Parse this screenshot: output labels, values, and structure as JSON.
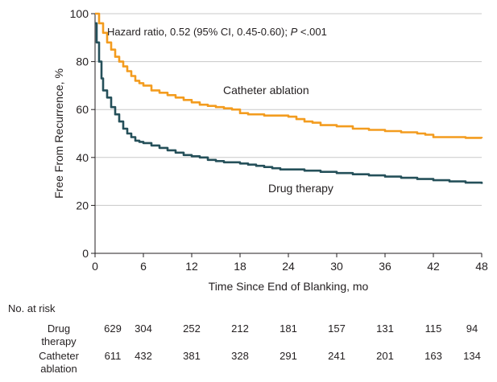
{
  "chart_data": {
    "type": "line",
    "annotation": {
      "prefix": "Hazard ratio, 0.52 (95% CI, 0.45-0.60); ",
      "p_symbol": "P",
      "p_value": " <.001"
    },
    "xlabel": "Time Since End of Blanking, mo",
    "ylabel": "Free From Recurrence, %",
    "xlim": [
      0,
      48
    ],
    "ylim": [
      0,
      100
    ],
    "xticks": [
      0,
      6,
      12,
      18,
      24,
      30,
      36,
      42,
      48
    ],
    "yticks": [
      0,
      20,
      40,
      60,
      80,
      100
    ],
    "grid": "horizontal",
    "series": [
      {
        "name": "Catheter ablation",
        "color": "#f39c1f",
        "x": [
          0,
          0.5,
          1,
          1.5,
          2,
          2.5,
          3,
          3.5,
          4,
          4.5,
          5,
          5.5,
          6,
          7,
          8,
          9,
          10,
          11,
          12,
          13,
          14,
          15,
          16,
          17,
          18,
          19,
          20,
          21,
          22,
          23,
          24,
          25,
          26,
          27,
          28,
          30,
          32,
          34,
          36,
          38,
          40,
          41,
          42,
          44,
          46,
          48
        ],
        "y": [
          100,
          96,
          92,
          88,
          85,
          82,
          80,
          78,
          76,
          74,
          72,
          71,
          70,
          68,
          67,
          66,
          65,
          64,
          63,
          62,
          61.5,
          61,
          60.5,
          60,
          58.5,
          58,
          58,
          57.5,
          57.5,
          57.5,
          57,
          56,
          55,
          54.5,
          53.5,
          53,
          52,
          51.5,
          51,
          50.5,
          50,
          49.5,
          48.5,
          48.5,
          48.2,
          48
        ]
      },
      {
        "name": "Drug therapy",
        "color": "#25505a",
        "x": [
          0,
          0.2,
          0.5,
          0.8,
          1,
          1.5,
          2,
          2.5,
          3,
          3.5,
          4,
          4.5,
          5,
          5.5,
          6,
          7,
          8,
          9,
          10,
          11,
          12,
          13,
          14,
          15,
          16,
          17,
          18,
          19,
          20,
          21,
          22,
          23,
          24,
          26,
          28,
          30,
          32,
          34,
          36,
          38,
          40,
          42,
          44,
          46,
          48
        ],
        "y": [
          96,
          88,
          80,
          73,
          68,
          65,
          61,
          58,
          55,
          52,
          50,
          48.5,
          47,
          46.5,
          46,
          45,
          44,
          43,
          42,
          41,
          40.5,
          40,
          39,
          38.5,
          38,
          38,
          37.5,
          37,
          36.5,
          36,
          35.5,
          35,
          35,
          34.5,
          34,
          33.5,
          33,
          32.5,
          32,
          31.5,
          31,
          30.5,
          30,
          29.5,
          29
        ]
      }
    ],
    "curve_labels": {
      "ablation": "Catheter ablation",
      "drug": "Drug therapy"
    },
    "risk_table": {
      "title": "No. at risk",
      "rows": [
        {
          "label_line1": "Drug",
          "label_line2": "therapy",
          "values": [
            629,
            304,
            252,
            212,
            181,
            157,
            131,
            115,
            94
          ]
        },
        {
          "label_line1": "Catheter",
          "label_line2": "ablation",
          "values": [
            611,
            432,
            381,
            328,
            291,
            241,
            201,
            163,
            134
          ]
        }
      ]
    }
  }
}
